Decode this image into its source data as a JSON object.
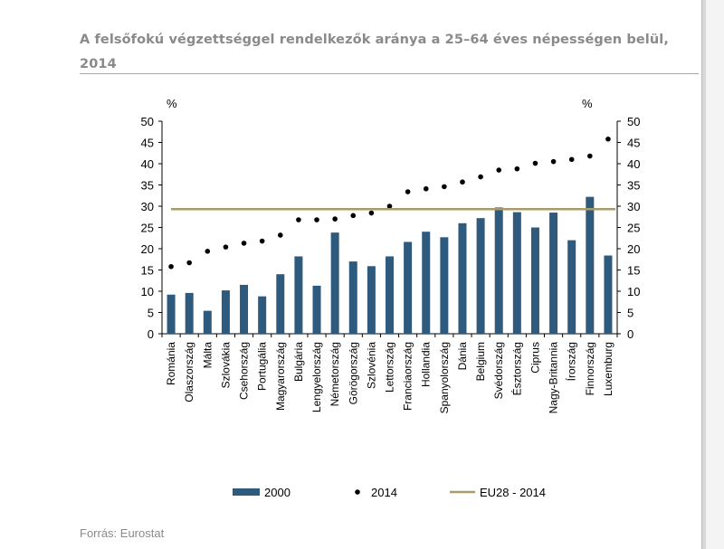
{
  "title": "A felsőfokú végzettséggel rendelkezők aránya a 25–64 éves népességen belül, 2014",
  "source": "Forrás: Eurostat",
  "colors": {
    "bar": "#2e5a7e",
    "dot": "#000000",
    "eu_line": "#a89a6a"
  },
  "chart_data": {
    "type": "bar",
    "categories": [
      "Románia",
      "Olaszország",
      "Málta",
      "Szlovákia",
      "Csehország",
      "Portugália",
      "Magyarország",
      "Bulgária",
      "Lengyelország",
      "Németország",
      "Görögország",
      "Szlovénia",
      "Lettország",
      "Franciaország",
      "Hollandia",
      "Spanyolország",
      "Dánia",
      "Belgium",
      "Svédország",
      "Észtország",
      "Ciprus",
      "Nagy-Britannia",
      "Írország",
      "Finnország",
      "Luxemburg"
    ],
    "series": [
      {
        "name": "2000",
        "kind": "bar",
        "values": [
          9.2,
          9.6,
          5.4,
          10.2,
          11.5,
          8.8,
          14.0,
          18.2,
          11.3,
          23.8,
          17.0,
          15.9,
          18.2,
          21.6,
          24.0,
          22.7,
          26.0,
          27.2,
          29.7,
          28.6,
          25.0,
          28.5,
          22.0,
          32.2,
          18.4
        ]
      },
      {
        "name": "2014",
        "kind": "dot",
        "values": [
          15.8,
          16.7,
          19.4,
          20.4,
          21.3,
          21.8,
          23.2,
          26.8,
          26.8,
          27.0,
          27.8,
          28.4,
          30.0,
          33.4,
          34.1,
          34.6,
          35.7,
          36.9,
          38.5,
          38.8,
          40.1,
          40.5,
          41.0,
          41.8,
          45.8
        ]
      },
      {
        "name": "EU28 - 2014",
        "kind": "line",
        "value": 29.3
      }
    ],
    "y_unit_left": "%",
    "y_unit_right": "%",
    "ylim": [
      0,
      50
    ],
    "yticks": [
      0,
      5,
      10,
      15,
      20,
      25,
      30,
      35,
      40,
      45,
      50
    ],
    "grid": false,
    "legend_position": "bottom"
  }
}
